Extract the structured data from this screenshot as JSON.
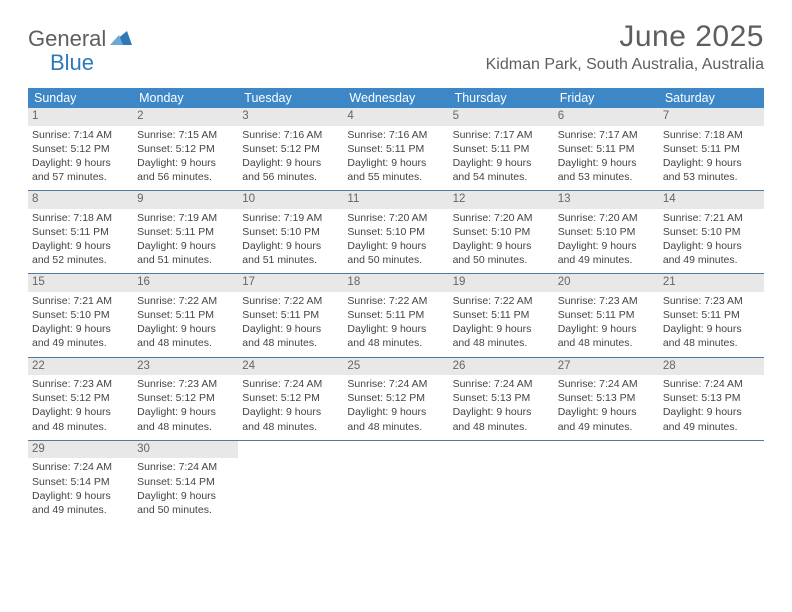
{
  "brand": {
    "general": "General",
    "blue": "Blue"
  },
  "title": "June 2025",
  "location": "Kidman Park, South Australia, Australia",
  "colors": {
    "header_bg": "#3d87c7",
    "header_text": "#ffffff",
    "daynum_bg": "#e8e8e8",
    "daynum_text": "#666666",
    "rule": "#4d7ba5",
    "title_color": "#5e5e5e",
    "brand_blue": "#2f79b9"
  },
  "weekdays": [
    "Sunday",
    "Monday",
    "Tuesday",
    "Wednesday",
    "Thursday",
    "Friday",
    "Saturday"
  ],
  "weeks": [
    [
      {
        "n": "1",
        "sr": "7:14 AM",
        "ss": "5:12 PM",
        "dl": "9 hours and 57 minutes."
      },
      {
        "n": "2",
        "sr": "7:15 AM",
        "ss": "5:12 PM",
        "dl": "9 hours and 56 minutes."
      },
      {
        "n": "3",
        "sr": "7:16 AM",
        "ss": "5:12 PM",
        "dl": "9 hours and 56 minutes."
      },
      {
        "n": "4",
        "sr": "7:16 AM",
        "ss": "5:11 PM",
        "dl": "9 hours and 55 minutes."
      },
      {
        "n": "5",
        "sr": "7:17 AM",
        "ss": "5:11 PM",
        "dl": "9 hours and 54 minutes."
      },
      {
        "n": "6",
        "sr": "7:17 AM",
        "ss": "5:11 PM",
        "dl": "9 hours and 53 minutes."
      },
      {
        "n": "7",
        "sr": "7:18 AM",
        "ss": "5:11 PM",
        "dl": "9 hours and 53 minutes."
      }
    ],
    [
      {
        "n": "8",
        "sr": "7:18 AM",
        "ss": "5:11 PM",
        "dl": "9 hours and 52 minutes."
      },
      {
        "n": "9",
        "sr": "7:19 AM",
        "ss": "5:11 PM",
        "dl": "9 hours and 51 minutes."
      },
      {
        "n": "10",
        "sr": "7:19 AM",
        "ss": "5:10 PM",
        "dl": "9 hours and 51 minutes."
      },
      {
        "n": "11",
        "sr": "7:20 AM",
        "ss": "5:10 PM",
        "dl": "9 hours and 50 minutes."
      },
      {
        "n": "12",
        "sr": "7:20 AM",
        "ss": "5:10 PM",
        "dl": "9 hours and 50 minutes."
      },
      {
        "n": "13",
        "sr": "7:20 AM",
        "ss": "5:10 PM",
        "dl": "9 hours and 49 minutes."
      },
      {
        "n": "14",
        "sr": "7:21 AM",
        "ss": "5:10 PM",
        "dl": "9 hours and 49 minutes."
      }
    ],
    [
      {
        "n": "15",
        "sr": "7:21 AM",
        "ss": "5:10 PM",
        "dl": "9 hours and 49 minutes."
      },
      {
        "n": "16",
        "sr": "7:22 AM",
        "ss": "5:11 PM",
        "dl": "9 hours and 48 minutes."
      },
      {
        "n": "17",
        "sr": "7:22 AM",
        "ss": "5:11 PM",
        "dl": "9 hours and 48 minutes."
      },
      {
        "n": "18",
        "sr": "7:22 AM",
        "ss": "5:11 PM",
        "dl": "9 hours and 48 minutes."
      },
      {
        "n": "19",
        "sr": "7:22 AM",
        "ss": "5:11 PM",
        "dl": "9 hours and 48 minutes."
      },
      {
        "n": "20",
        "sr": "7:23 AM",
        "ss": "5:11 PM",
        "dl": "9 hours and 48 minutes."
      },
      {
        "n": "21",
        "sr": "7:23 AM",
        "ss": "5:11 PM",
        "dl": "9 hours and 48 minutes."
      }
    ],
    [
      {
        "n": "22",
        "sr": "7:23 AM",
        "ss": "5:12 PM",
        "dl": "9 hours and 48 minutes."
      },
      {
        "n": "23",
        "sr": "7:23 AM",
        "ss": "5:12 PM",
        "dl": "9 hours and 48 minutes."
      },
      {
        "n": "24",
        "sr": "7:24 AM",
        "ss": "5:12 PM",
        "dl": "9 hours and 48 minutes."
      },
      {
        "n": "25",
        "sr": "7:24 AM",
        "ss": "5:12 PM",
        "dl": "9 hours and 48 minutes."
      },
      {
        "n": "26",
        "sr": "7:24 AM",
        "ss": "5:13 PM",
        "dl": "9 hours and 48 minutes."
      },
      {
        "n": "27",
        "sr": "7:24 AM",
        "ss": "5:13 PM",
        "dl": "9 hours and 49 minutes."
      },
      {
        "n": "28",
        "sr": "7:24 AM",
        "ss": "5:13 PM",
        "dl": "9 hours and 49 minutes."
      }
    ],
    [
      {
        "n": "29",
        "sr": "7:24 AM",
        "ss": "5:14 PM",
        "dl": "9 hours and 49 minutes."
      },
      {
        "n": "30",
        "sr": "7:24 AM",
        "ss": "5:14 PM",
        "dl": "9 hours and 50 minutes."
      },
      null,
      null,
      null,
      null,
      null
    ]
  ],
  "labels": {
    "sunrise": "Sunrise: ",
    "sunset": "Sunset: ",
    "daylight": "Daylight: "
  }
}
